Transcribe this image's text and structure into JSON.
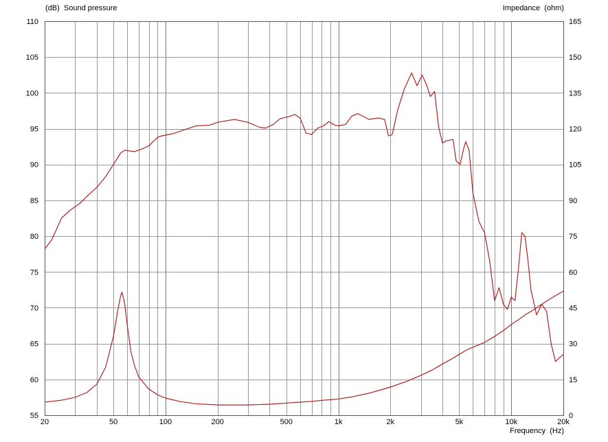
{
  "chart_data": {
    "type": "line",
    "ylabel": "(dB)  Sound pressure",
    "y2label": "Impedance  (ohm)",
    "xlabel": "Frequency  (Hz)",
    "x_scale": "log",
    "xlim": [
      20,
      20000
    ],
    "ylim": [
      55,
      110
    ],
    "y2lim": [
      0,
      165
    ],
    "grid": true,
    "line_color": "#b22222",
    "x_tick_labels": [
      {
        "value": 20,
        "label": "20"
      },
      {
        "value": 50,
        "label": "50"
      },
      {
        "value": 100,
        "label": "100"
      },
      {
        "value": 200,
        "label": "200"
      },
      {
        "value": 500,
        "label": "500"
      },
      {
        "value": 1000,
        "label": "1k"
      },
      {
        "value": 2000,
        "label": "2k"
      },
      {
        "value": 5000,
        "label": "5k"
      },
      {
        "value": 10000,
        "label": "10k"
      },
      {
        "value": 20000,
        "label": "20k"
      }
    ],
    "y_ticks": [
      110,
      105,
      100,
      95,
      90,
      85,
      80,
      75,
      70,
      65,
      60,
      55
    ],
    "y2_ticks": [
      165,
      150,
      135,
      120,
      105,
      90,
      75,
      60,
      45,
      30,
      15,
      0
    ],
    "series": [
      {
        "axis": "left",
        "x": [
          20,
          22,
          25,
          28,
          32,
          36,
          40,
          45,
          50,
          55,
          58,
          62,
          66,
          72,
          80,
          90,
          95,
          110,
          130,
          150,
          180,
          200,
          250,
          300,
          350,
          380,
          420,
          460,
          520,
          560,
          600,
          650,
          700,
          760,
          820,
          880,
          950,
          1000,
          1100,
          1200,
          1300,
          1500,
          1700,
          1850,
          1950,
          2050,
          2200,
          2400,
          2650,
          2850,
          3050,
          3250,
          3400,
          3600,
          3800,
          4000,
          4200,
          4600,
          4800,
          5050,
          5300,
          5450,
          5700,
          6000,
          6500,
          7000,
          7500,
          8000,
          8500,
          9000,
          9500,
          10000,
          10500,
          11000,
          11500,
          12000,
          12500,
          13000,
          14000,
          15000,
          16000,
          17000,
          18000,
          20000
        ],
        "y": [
          78.2,
          79.5,
          82.5,
          83.6,
          84.6,
          85.8,
          86.8,
          88.3,
          90.0,
          91.6,
          92.0,
          91.9,
          91.8,
          92.1,
          92.6,
          93.8,
          94.0,
          94.3,
          94.9,
          95.4,
          95.5,
          95.9,
          96.3,
          95.9,
          95.2,
          95.1,
          95.6,
          96.4,
          96.7,
          97.0,
          96.5,
          94.4,
          94.2,
          95.1,
          95.4,
          96.0,
          95.5,
          95.4,
          95.6,
          96.8,
          97.1,
          96.3,
          96.5,
          96.3,
          94.0,
          94.2,
          97.6,
          100.5,
          102.8,
          101.0,
          102.5,
          101.0,
          99.5,
          100.2,
          95.2,
          93.0,
          93.3,
          93.5,
          90.5,
          90.0,
          92.2,
          93.2,
          92.0,
          86.0,
          82.0,
          80.5,
          76.5,
          71.0,
          72.8,
          70.5,
          69.8,
          71.5,
          71.0,
          75.5,
          80.5,
          80.0,
          76.5,
          72.5,
          69.0,
          70.5,
          69.5,
          65.0,
          62.5,
          63.5
        ]
      },
      {
        "axis": "right",
        "x": [
          20,
          22,
          25,
          30,
          35,
          40,
          45,
          50,
          53,
          55,
          56,
          58,
          60,
          63,
          66,
          70,
          80,
          90,
          100,
          120,
          150,
          200,
          300,
          400,
          500,
          600,
          700,
          800,
          1000,
          1200,
          1500,
          2000,
          2500,
          3000,
          3500,
          4000,
          4500,
          5000,
          5500,
          6000,
          7000,
          8000,
          9000,
          10000,
          11000,
          12000,
          13000,
          14000,
          15000,
          17000,
          20000
        ],
        "y": [
          5.5,
          5.8,
          6.3,
          7.5,
          9.5,
          13.0,
          20.0,
          33.0,
          44.0,
          50.0,
          51.5,
          47.0,
          38.0,
          27.0,
          21.0,
          16.0,
          11.0,
          8.5,
          7.2,
          5.8,
          4.8,
          4.3,
          4.3,
          4.6,
          5.1,
          5.5,
          5.8,
          6.2,
          6.8,
          7.7,
          9.2,
          11.8,
          14.3,
          16.7,
          19.0,
          21.5,
          23.5,
          25.5,
          27.3,
          28.5,
          30.5,
          33.0,
          35.5,
          38.0,
          40.0,
          42.0,
          43.5,
          45.0,
          46.5,
          49.0,
          52.0
        ]
      }
    ]
  }
}
